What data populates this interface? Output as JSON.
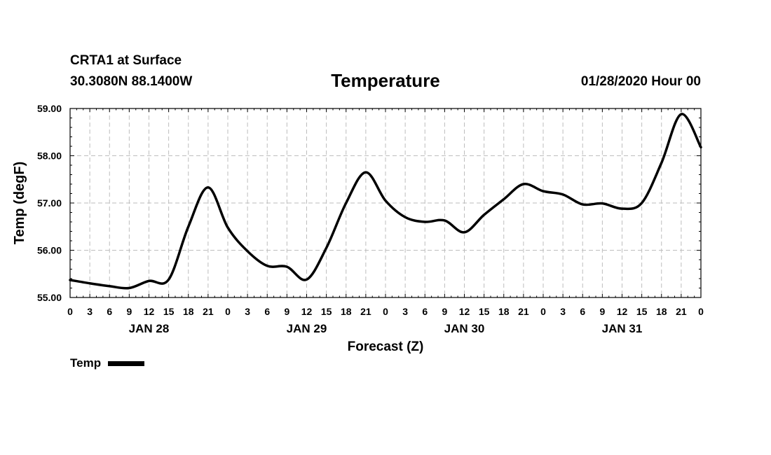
{
  "header": {
    "station_name": "CRTA1 at Surface",
    "station_coords": "30.3080N 88.1400W",
    "title": "Temperature",
    "run_time": "01/28/2020 Hour 00"
  },
  "legend": {
    "label": "Temp",
    "line_color": "#000000"
  },
  "chart_data": {
    "type": "line",
    "title": "Temperature",
    "xlabel": "Forecast (Z)",
    "ylabel": "Temp (degF)",
    "ylim": [
      55.0,
      59.0
    ],
    "xlim_hours": [
      0,
      96
    ],
    "y_ticks": [
      "55.00",
      "56.00",
      "57.00",
      "58.00",
      "59.00"
    ],
    "x_tick_labels": [
      "0",
      "3",
      "6",
      "9",
      "12",
      "15",
      "18",
      "21",
      "0",
      "3",
      "6",
      "9",
      "12",
      "15",
      "18",
      "21",
      "0",
      "3",
      "6",
      "9",
      "12",
      "15",
      "18",
      "21",
      "0",
      "3",
      "6",
      "9",
      "12",
      "15",
      "18",
      "21",
      "0"
    ],
    "day_labels": [
      {
        "label": "JAN 28",
        "hour": 12
      },
      {
        "label": "JAN 29",
        "hour": 36
      },
      {
        "label": "JAN 30",
        "hour": 60
      },
      {
        "label": "JAN 31",
        "hour": 84
      }
    ],
    "grid": true,
    "series": [
      {
        "name": "Temp",
        "color": "#000000",
        "points": [
          [
            0,
            55.37
          ],
          [
            3,
            55.3
          ],
          [
            6,
            55.24
          ],
          [
            9,
            55.2
          ],
          [
            12,
            55.35
          ],
          [
            15,
            55.38
          ],
          [
            18,
            56.5
          ],
          [
            21,
            57.33
          ],
          [
            24,
            56.48
          ],
          [
            27,
            55.98
          ],
          [
            30,
            55.67
          ],
          [
            33,
            55.65
          ],
          [
            36,
            55.38
          ],
          [
            39,
            56.05
          ],
          [
            42,
            57.0
          ],
          [
            45,
            57.65
          ],
          [
            48,
            57.05
          ],
          [
            51,
            56.7
          ],
          [
            54,
            56.6
          ],
          [
            57,
            56.63
          ],
          [
            60,
            56.38
          ],
          [
            63,
            56.75
          ],
          [
            66,
            57.08
          ],
          [
            69,
            57.4
          ],
          [
            72,
            57.25
          ],
          [
            75,
            57.18
          ],
          [
            78,
            56.97
          ],
          [
            81,
            56.99
          ],
          [
            84,
            56.88
          ],
          [
            87,
            57.0
          ],
          [
            90,
            57.85
          ],
          [
            93,
            58.88
          ],
          [
            96,
            58.18
          ]
        ]
      }
    ]
  }
}
